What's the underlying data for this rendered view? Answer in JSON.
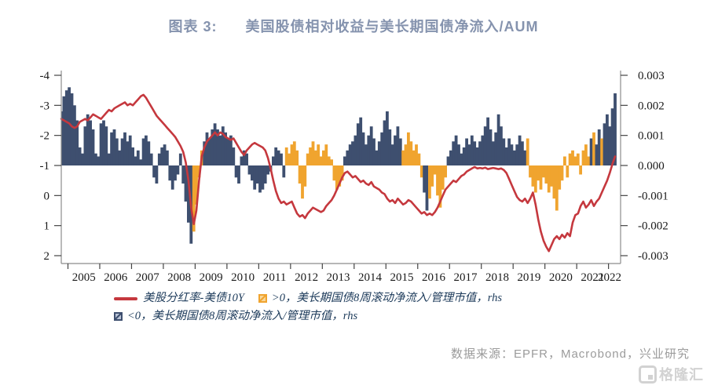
{
  "title": {
    "prefix": "图表 3:",
    "text": "美国股债相对收益与美长期国债净流入/AUM"
  },
  "legend": {
    "line_label": "美股分红率-美债10Y",
    "pos_label": ">0，美长期国债8周滚动净流入/管理市值，rhs",
    "neg_label": "<0，美长期国债8周滚动净流入/管理市值，rhs"
  },
  "source_text": "数据来源：EPFR，Macrobond，兴业研究",
  "watermark_text": "格隆汇",
  "colors": {
    "line": "#c5383e",
    "bar_navy": "#3e4f6f",
    "bar_orange": "#f0a42f",
    "title": "#8593ae",
    "legend_text": "#1c3a5a",
    "axis_line": "#8c8c8c",
    "tick_text": "#1a1a1a",
    "source": "#9b9b9b",
    "watermark": "#cbcbcb"
  },
  "chart_data": {
    "type": "bar+line",
    "x_domain": [
      2004.79,
      2022.38
    ],
    "x_ticks": [
      2005,
      2006,
      2007,
      2008,
      2009,
      2010,
      2011,
      2012,
      2013,
      2014,
      2015,
      2016,
      2017,
      2018,
      2019,
      2020,
      2021,
      2022
    ],
    "left_axis": {
      "tick_labels": [
        "-4",
        "-3",
        "-2",
        "-1",
        "0",
        "1",
        "2"
      ],
      "tick_values": [
        -4,
        -3,
        -2,
        -1,
        0,
        1,
        2
      ],
      "orientation": "inverted (-4 at top)"
    },
    "right_axis": {
      "tick_labels": [
        "0.003",
        "0.002",
        "0.001",
        "0.000",
        "-0.001",
        "-0.002",
        "-0.003"
      ],
      "tick_values": [
        0.003,
        0.002,
        0.001,
        0,
        -0.001,
        -0.002,
        -0.003
      ]
    },
    "baseline_left_value": -1,
    "line_series": {
      "name": "美股分红率-美债10Y",
      "axis": "left",
      "start": 2004.79,
      "step_years": 0.0833333,
      "values": [
        -2.55,
        -2.5,
        -2.45,
        -2.4,
        -2.3,
        -2.25,
        -2.3,
        -2.45,
        -2.5,
        -2.55,
        -2.5,
        -2.6,
        -2.7,
        -2.65,
        -2.6,
        -2.55,
        -2.65,
        -2.75,
        -2.85,
        -2.8,
        -2.9,
        -2.95,
        -3.0,
        -3.05,
        -3.1,
        -3.0,
        -3.05,
        -3.0,
        -3.1,
        -3.2,
        -3.3,
        -3.35,
        -3.25,
        -3.1,
        -2.95,
        -2.8,
        -2.65,
        -2.55,
        -2.45,
        -2.35,
        -2.25,
        -2.15,
        -2.05,
        -1.95,
        -1.8,
        -1.65,
        -1.45,
        -1.1,
        -0.5,
        0.4,
        0.95,
        0.5,
        -0.5,
        -1.3,
        -1.6,
        -1.8,
        -1.9,
        -2.0,
        -2.1,
        -2.0,
        -2.1,
        -2.05,
        -1.95,
        -1.9,
        -1.85,
        -1.9,
        -1.75,
        -1.6,
        -1.45,
        -1.35,
        -1.5,
        -1.6,
        -1.7,
        -1.75,
        -1.7,
        -1.65,
        -1.6,
        -1.5,
        -1.25,
        -0.9,
        -0.5,
        -0.15,
        0.1,
        0.25,
        0.2,
        0.3,
        0.25,
        0.2,
        0.4,
        0.6,
        0.7,
        0.65,
        0.75,
        0.6,
        0.5,
        0.4,
        0.45,
        0.5,
        0.55,
        0.5,
        0.35,
        0.25,
        0.15,
        0.0,
        -0.2,
        -0.4,
        -0.6,
        -0.75,
        -0.8,
        -0.7,
        -0.6,
        -0.65,
        -0.55,
        -0.45,
        -0.5,
        -0.4,
        -0.35,
        -0.45,
        -0.3,
        -0.25,
        -0.2,
        -0.1,
        -0.05,
        0.1,
        0.2,
        0.15,
        0.25,
        0.1,
        0.2,
        0.3,
        0.25,
        0.15,
        0.2,
        0.3,
        0.4,
        0.5,
        0.6,
        0.55,
        0.65,
        0.6,
        0.65,
        0.55,
        0.4,
        0.2,
        0.0,
        -0.2,
        -0.3,
        -0.4,
        -0.5,
        -0.45,
        -0.55,
        -0.65,
        -0.7,
        -0.8,
        -0.85,
        -0.9,
        -0.95,
        -0.9,
        -0.92,
        -0.9,
        -0.93,
        -0.88,
        -0.9,
        -0.92,
        -0.9,
        -0.88,
        -0.9,
        -0.85,
        -0.75,
        -0.55,
        -0.35,
        -0.15,
        0.05,
        0.15,
        0.2,
        0.1,
        0.25,
        0.1,
        -0.1,
        0.3,
        0.8,
        1.2,
        1.5,
        1.7,
        1.85,
        1.65,
        1.45,
        1.35,
        1.45,
        1.3,
        1.4,
        1.25,
        1.35,
        0.9,
        0.65,
        0.6,
        0.35,
        0.2,
        0.4,
        0.3,
        0.15,
        0.35,
        0.2,
        0.1,
        -0.1,
        -0.3,
        -0.5,
        -0.75,
        -1.05,
        -1.3
      ]
    },
    "bar_series": {
      "name": "美长期国债8周滚动净流入/管理市值",
      "axis": "right",
      "unit": 0.001,
      "start": 2004.79,
      "step_years": 0.0833333,
      "values": [
        1.8,
        2.3,
        2.5,
        2.6,
        2.4,
        2.0,
        1.5,
        0.6,
        0.4,
        1.3,
        1.7,
        1.5,
        1.2,
        0.4,
        0.3,
        1.4,
        1.5,
        1.3,
        0.4,
        1.1,
        1.2,
        0.9,
        0.5,
        0.9,
        1.1,
        0.8,
        1.0,
        0.6,
        0.3,
        0.5,
        0.2,
        0.9,
        1.0,
        0.8,
        0.4,
        -0.4,
        -0.6,
        0.4,
        0.6,
        0.7,
        0.5,
        -0.5,
        -0.8,
        -0.5,
        -0.3,
        0.4,
        -0.6,
        -1.2,
        -1.9,
        -2.6,
        -2.2,
        -1.3,
        -0.4,
        0.5,
        0.8,
        1.1,
        0.9,
        1.2,
        1.4,
        1.2,
        1.0,
        1.3,
        1.1,
        0.9,
        1.0,
        0.6,
        -0.4,
        -0.6,
        0.3,
        0.5,
        0.4,
        -0.3,
        -0.5,
        -0.8,
        -0.6,
        -0.9,
        -0.8,
        -0.6,
        -0.3,
        -0.2,
        0.3,
        0.6,
        0.5,
        0.4,
        -0.4,
        0.6,
        0.4,
        0.7,
        0.8,
        0.5,
        -0.6,
        -1.1,
        -0.7,
        0.4,
        0.6,
        0.8,
        0.5,
        0.7,
        0.3,
        0.5,
        0.7,
        0.3,
        0.2,
        -0.5,
        -0.8,
        -0.7,
        -0.5,
        0.3,
        0.5,
        0.7,
        0.8,
        1.0,
        1.4,
        1.6,
        1.1,
        0.7,
        1.0,
        1.3,
        0.9,
        0.5,
        0.8,
        1.1,
        1.5,
        1.8,
        1.2,
        0.7,
        1.0,
        1.3,
        0.9,
        0.5,
        0.7,
        1.1,
        0.8,
        0.5,
        0.7,
        0.4,
        -0.4,
        -0.9,
        -1.5,
        -1.1,
        -0.7,
        -0.3,
        -1.0,
        -1.4,
        -0.8,
        -0.4,
        0.3,
        0.5,
        0.8,
        1.0,
        0.7,
        0.4,
        0.6,
        0.9,
        0.7,
        1.0,
        0.8,
        0.6,
        0.8,
        1.0,
        1.3,
        1.6,
        1.2,
        0.8,
        1.1,
        1.7,
        1.3,
        0.9,
        0.6,
        0.9,
        0.7,
        0.5,
        0.7,
        1.0,
        0.8,
        0.5,
        0.9,
        -0.4,
        -0.7,
        -0.9,
        -0.5,
        -0.8,
        -0.4,
        -0.6,
        -0.9,
        -0.7,
        -1.1,
        -1.5,
        -0.8,
        -0.5,
        0.3,
        -0.4,
        0.4,
        0.5,
        0.3,
        0.4,
        -0.3,
        0.5,
        0.7,
        0.3,
        0.9,
        1.1,
        0.7,
        1.2,
        0.9,
        1.4,
        1.7,
        1.3,
        1.9,
        2.4
      ],
      "colors": "nnnnnnnnnnnnnnnnnnnnnnnnnnnnnnnnnnnnnnnnnnnnnnnnnnoooonnnnnnnnnnnnnnnnnnnnnnnnnnnnnnnoooooooooooooooooooooonnnnnnnnnnnnnnnnnnnnnnoooooooonnooooooonnnnnnnnnnnnnnnnnnnnnnnnnnnnnnoooooooooooooooooooooooononnonnnnnnnnnn"
    }
  }
}
